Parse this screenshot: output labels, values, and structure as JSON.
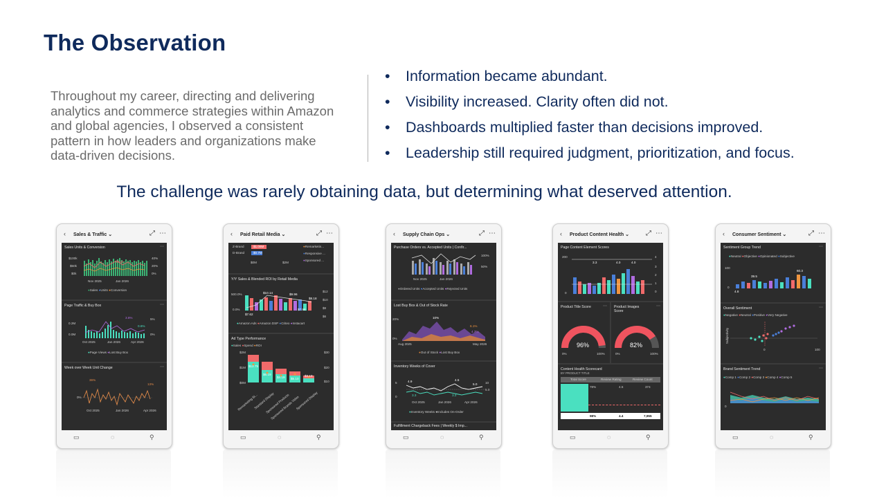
{
  "slide": {
    "title": "The Observation",
    "intro": "Throughout my career, directing and delivering analytics and commerce strategies within Amazon and global agencies, I observed a consistent pattern in how leaders and organizations make data-driven decisions.",
    "bullets": [
      "Information became abundant.",
      "Visibility increased. Clarity often did not.",
      "Dashboards multiplied faster than decisions improved.",
      "Leadership still required judgment, prioritization, and focus."
    ],
    "bullet_char": "•",
    "challenge": "The challenge was rarely obtaining data, but determining what deserved attention."
  },
  "phones": [
    {
      "title": "Sales & Traffic",
      "panels": [
        {
          "title": "Sales Units & Conversion",
          "ticks": [
            "$100k",
            "$50k",
            "$0k",
            "40%",
            "20%",
            "0%"
          ],
          "xlabels": [
            "Nov 2025",
            "Jan 2026"
          ],
          "legend": [
            "Sales",
            "Units",
            "Conversion"
          ],
          "labels": [
            "18.3k"
          ]
        },
        {
          "title": "Page Traffic & Buy Box",
          "ticks": [
            "0.2M",
            "0.0M",
            "5%",
            "0%"
          ],
          "xlabels": [
            "Oct 2025",
            "Jan 2026",
            "Apr 2026"
          ],
          "legend": [
            "Page Views",
            "Lost Buy Box"
          ],
          "labels": [
            "3.8%",
            "0.6%"
          ]
        },
        {
          "title": "Week over Week Unit Change",
          "ticks": [
            "0%"
          ],
          "xlabels": [
            "Oct 2025",
            "Jan 2026",
            "Apr 2026"
          ],
          "legend": [],
          "labels": [
            "36%",
            "13%"
          ]
        }
      ]
    },
    {
      "title": "Paid Retail Media",
      "panels": [
        {
          "title": "",
          "ticks": [
            "$0M",
            "$2M"
          ],
          "xlabels": [],
          "legend": [
            "Remarketin...",
            "Responsive ...",
            "Sponsored ..."
          ],
          "labels": [
            "Z-Brand",
            "D-Brand",
            "$1.06M",
            "$0.7M"
          ]
        },
        {
          "title": "Y/Y Sales & Blended ROI by Retail Media",
          "ticks": [
            "500.0%",
            "0.0%",
            "$12",
            "$10",
            "$8",
            "$6"
          ],
          "xlabels": [],
          "legend": [
            "Amazon Ads",
            "Amazon DSP",
            "Criteo",
            "Instacart"
          ],
          "labels": [
            "$10.14",
            "$9.96",
            "$7.62",
            "$7.96",
            "$8.18"
          ]
        },
        {
          "title": "Ad Type Performance",
          "ticks": [
            "$2M",
            "$1M",
            "$0M",
            "$30",
            "$20",
            "$10"
          ],
          "xlabels": [
            "Remarketing Bi...",
            "Standard Display",
            "Sponsored Products",
            "Sponsored Brands Video",
            "Sponsored Display"
          ],
          "legend": [
            "Sales",
            "Spend",
            "ROI"
          ],
          "labels": [
            "$12.75",
            "$6.19",
            "$4.19",
            "$5.10",
            "$3.19"
          ]
        }
      ]
    },
    {
      "title": "Supply Chain Ops",
      "panels": [
        {
          "title": "Purchase Orders vs. Accepted Units | Confir...",
          "ticks": [
            "100%",
            "50%"
          ],
          "xlabels": [
            "Nov 2025",
            "Jan 2026"
          ],
          "legend": [
            "Ordered Units",
            "Accepted Units",
            "Rejected Units"
          ],
          "labels": []
        },
        {
          "title": "Lost Buy Box & Out of Stock Rate",
          "ticks": [
            "20%",
            "0%"
          ],
          "xlabels": [
            "Aug 2025",
            "May 2026"
          ],
          "legend": [
            "Out of Stock",
            "Lost Buy Box"
          ],
          "labels": [
            "10%",
            "6.1%",
            "4.3%"
          ]
        },
        {
          "title": "Inventory Weeks of Cover",
          "ticks": [
            "5",
            "0",
            "10",
            "5.0"
          ],
          "xlabels": [
            "Oct 2025",
            "Jan 2026",
            "Apr 2026"
          ],
          "legend": [
            "Inventory Weeks",
            "Includes On-Order"
          ],
          "labels": [
            "4.9",
            "4.5",
            "5.0",
            "3.3",
            "3.2"
          ]
        },
        {
          "title": "Fulfillment Chargeback Fees | Weekly $ Imp...",
          "ticks": [],
          "xlabels": [],
          "legend": [],
          "labels": []
        }
      ]
    },
    {
      "title": "Product Content Health",
      "panels": [
        {
          "title": "Page Content Element Scores",
          "ticks": [
            "200",
            "0",
            "4",
            "3",
            "2",
            "1",
            "0"
          ],
          "xlabels": [],
          "legend": [],
          "labels": [
            "3.3",
            "4.0",
            "4.0"
          ]
        },
        {
          "title": "Product Title Score",
          "ticks": [
            "0%",
            "100%"
          ],
          "xlabels": [],
          "legend": [],
          "labels": [
            "96%"
          ],
          "value": 0.96
        },
        {
          "title": "Product Images Score",
          "ticks": [
            "0%",
            "100%"
          ],
          "xlabels": [],
          "legend": [],
          "labels": [
            "82%"
          ],
          "value": 0.82
        },
        {
          "title": "Content Health Scorecard",
          "subtitle": "BY PRODUCT TITLE",
          "columns": [
            "Total Score",
            "Review Rating",
            "Review Count"
          ],
          "rows": [
            [
              "78%",
              "4.5",
              "374"
            ],
            [
              "98%",
              "4.4",
              "7,955"
            ]
          ]
        }
      ]
    },
    {
      "title": "Consumer Sentiment",
      "panels": [
        {
          "title": "Sentiment Group Trend",
          "ticks": [
            "100",
            "0"
          ],
          "xlabels": [],
          "legend": [
            "Neutral",
            "Objective",
            "Opinionated",
            "Subjective"
          ],
          "labels": [
            "39.5",
            "60.3",
            "4.8"
          ]
        },
        {
          "title": "Overall Sentiment",
          "ticks": [
            "0",
            "100"
          ],
          "xlabels": [],
          "legend": [
            "Negative",
            "Neutral",
            "Positive",
            "Very Negative"
          ],
          "labels": [
            "Subjectivity"
          ]
        },
        {
          "title": "Brand Sentiment Trend",
          "ticks": [
            "0"
          ],
          "xlabels": [],
          "legend": [
            "Comp 1",
            "Comp 2",
            "Comp 3",
            "Comp 4",
            "Comp 5"
          ],
          "labels": []
        }
      ]
    }
  ],
  "icons": {
    "back": "chevron-left-icon",
    "dropdown": "chevron-down-icon",
    "expand": "expand-icon",
    "more": "more-icon",
    "comment": "comment-icon",
    "chat": "chat-icon",
    "mic": "microphone-icon"
  },
  "colors": {
    "title": "#0f2a5c",
    "intro": "#6b6b6b",
    "screen_bg": "#2c2c2c",
    "green": "#3bb273",
    "teal": "#4ae0c0",
    "salmon": "#f06a6a",
    "purple": "#b06ce0",
    "orange": "#f0953f",
    "blue": "#4a7fd9"
  }
}
